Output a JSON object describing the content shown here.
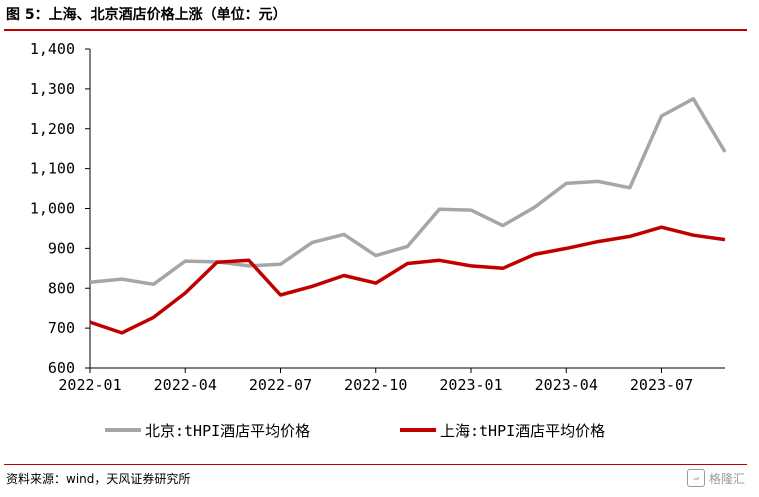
{
  "title": "图 5：上海、北京酒店价格上涨（单位：元）",
  "source": "资料来源：wind，天风证券研究所",
  "watermark": {
    "icon": "gelonghui-logo-icon",
    "text": "格隆汇"
  },
  "colors": {
    "rule": "#c00000",
    "beijing": "#a6a6a6",
    "shanghai": "#c00000",
    "axis": "#000000"
  },
  "chart_data": {
    "type": "line",
    "x": [
      "2022-01",
      "2022-02",
      "2022-03",
      "2022-04",
      "2022-05",
      "2022-06",
      "2022-07",
      "2022-08",
      "2022-09",
      "2022-10",
      "2022-11",
      "2022-12",
      "2023-01",
      "2023-02",
      "2023-03",
      "2023-04",
      "2023-05",
      "2023-06",
      "2023-07",
      "2023-08",
      "2023-09"
    ],
    "x_tick_labels": [
      "2022-01",
      "2022-04",
      "2022-07",
      "2022-10",
      "2023-01",
      "2023-04",
      "2023-07"
    ],
    "y_tick_labels": [
      "600",
      "700",
      "800",
      "900",
      "1,000",
      "1,100",
      "1,200",
      "1,300",
      "1,400"
    ],
    "ylim": [
      600,
      1400
    ],
    "grid": false,
    "legend_position": "bottom",
    "series": [
      {
        "name": "北京:tHPI酒店平均价格",
        "color": "#a6a6a6",
        "values": [
          815,
          823,
          810,
          868,
          866,
          856,
          860,
          915,
          935,
          882,
          905,
          998,
          996,
          957,
          1003,
          1063,
          1068,
          1052,
          1232,
          1275,
          1142
        ]
      },
      {
        "name": "上海:tHPI酒店平均价格",
        "color": "#c00000",
        "values": [
          715,
          688,
          727,
          788,
          865,
          870,
          783,
          805,
          832,
          813,
          862,
          870,
          856,
          850,
          885,
          900,
          917,
          930,
          953,
          933,
          922
        ]
      }
    ]
  }
}
